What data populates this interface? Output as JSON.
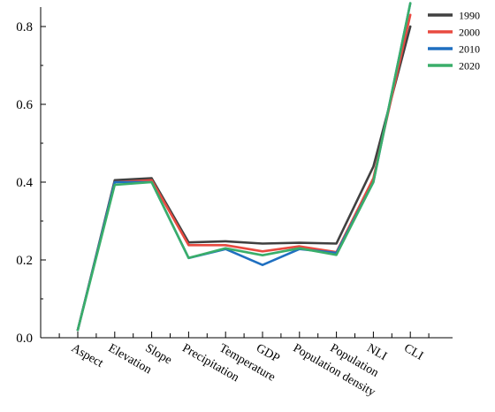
{
  "chart_data": {
    "type": "line",
    "categories": [
      "Aspect",
      "Elevation",
      "Slope",
      "Precipitation",
      "Temperature",
      "GDP",
      "Population density",
      "Population",
      "NLI",
      "CLI"
    ],
    "series": [
      {
        "name": "1990",
        "color": "#404040",
        "values": [
          0.02,
          0.405,
          0.41,
          0.245,
          0.248,
          0.242,
          0.244,
          0.242,
          0.44,
          0.8
        ]
      },
      {
        "name": "2000",
        "color": "#e84a40",
        "values": [
          0.02,
          0.4,
          0.405,
          0.238,
          0.238,
          0.222,
          0.235,
          0.22,
          0.41,
          0.83
        ]
      },
      {
        "name": "2010",
        "color": "#1f6fc0",
        "values": [
          0.02,
          0.4,
          0.4,
          0.205,
          0.228,
          0.187,
          0.228,
          0.218,
          0.4,
          0.86
        ]
      },
      {
        "name": "2020",
        "color": "#3aae6a",
        "values": [
          0.02,
          0.393,
          0.4,
          0.205,
          0.23,
          0.212,
          0.23,
          0.213,
          0.4,
          0.86
        ]
      }
    ],
    "y_ticks": [
      "0.0",
      "0.2",
      "0.4",
      "0.6",
      "0.8"
    ],
    "ylim": [
      0,
      0.85
    ],
    "legend_position": "top-right",
    "grid": false
  }
}
